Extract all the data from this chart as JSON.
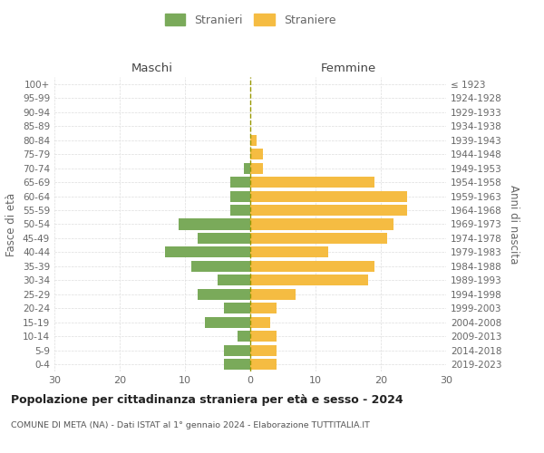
{
  "age_groups": [
    "100+",
    "95-99",
    "90-94",
    "85-89",
    "80-84",
    "75-79",
    "70-74",
    "65-69",
    "60-64",
    "55-59",
    "50-54",
    "45-49",
    "40-44",
    "35-39",
    "30-34",
    "25-29",
    "20-24",
    "15-19",
    "10-14",
    "5-9",
    "0-4"
  ],
  "birth_years": [
    "≤ 1923",
    "1924-1928",
    "1929-1933",
    "1934-1938",
    "1939-1943",
    "1944-1948",
    "1949-1953",
    "1954-1958",
    "1959-1963",
    "1964-1968",
    "1969-1973",
    "1974-1978",
    "1979-1983",
    "1984-1988",
    "1989-1993",
    "1994-1998",
    "1999-2003",
    "2004-2008",
    "2009-2013",
    "2014-2018",
    "2019-2023"
  ],
  "males": [
    0,
    0,
    0,
    0,
    0,
    0,
    1,
    3,
    3,
    3,
    11,
    8,
    13,
    9,
    5,
    8,
    4,
    7,
    2,
    4,
    4
  ],
  "females": [
    0,
    0,
    0,
    0,
    1,
    2,
    2,
    19,
    24,
    24,
    22,
    21,
    12,
    19,
    18,
    7,
    4,
    3,
    4,
    4,
    4
  ],
  "male_color": "#7aaa5a",
  "female_color": "#f5bc42",
  "title": "Popolazione per cittadinanza straniera per età e sesso - 2024",
  "subtitle": "COMUNE DI META (NA) - Dati ISTAT al 1° gennaio 2024 - Elaborazione TUTTITALIA.IT",
  "legend_male": "Stranieri",
  "legend_female": "Straniere",
  "left_header": "Maschi",
  "right_header": "Femmine",
  "left_ylabel": "Fasce di età",
  "right_ylabel": "Anni di nascita",
  "xlim": 30,
  "background_color": "#ffffff",
  "grid_color": "#dddddd",
  "center_line_color": "#999900",
  "label_color": "#666666"
}
